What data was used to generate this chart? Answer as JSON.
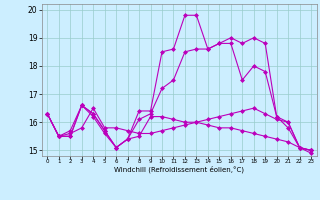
{
  "background_color": "#cceeff",
  "grid_color": "#99cccc",
  "line_color": "#bb00bb",
  "marker": "D",
  "marker_size": 2,
  "line_width": 0.8,
  "xlim": [
    -0.5,
    23.5
  ],
  "ylim": [
    14.8,
    20.2
  ],
  "yticks": [
    15,
    16,
    17,
    18,
    19,
    20
  ],
  "xticks": [
    0,
    1,
    2,
    3,
    4,
    5,
    6,
    7,
    8,
    9,
    10,
    11,
    12,
    13,
    14,
    15,
    16,
    17,
    18,
    19,
    20,
    21,
    22,
    23
  ],
  "xlabel": "Windchill (Refroidissement éolien,°C)",
  "lines": [
    [
      16.3,
      15.5,
      15.5,
      16.6,
      16.2,
      15.6,
      15.1,
      15.4,
      15.5,
      16.2,
      16.2,
      16.1,
      16.0,
      16.0,
      15.9,
      15.8,
      15.8,
      15.7,
      15.6,
      15.5,
      15.4,
      15.3,
      15.1,
      14.9
    ],
    [
      16.3,
      15.5,
      15.5,
      16.6,
      16.3,
      15.7,
      15.1,
      15.4,
      16.4,
      16.4,
      18.5,
      18.6,
      19.8,
      19.8,
      18.6,
      18.8,
      19.0,
      18.8,
      19.0,
      18.8,
      16.2,
      16.0,
      15.1,
      15.0
    ],
    [
      16.3,
      15.5,
      15.7,
      16.6,
      16.3,
      15.7,
      15.1,
      15.4,
      16.1,
      16.3,
      17.2,
      17.5,
      18.5,
      18.6,
      18.6,
      18.8,
      18.8,
      17.5,
      18.0,
      17.8,
      16.2,
      15.8,
      15.1,
      15.0
    ],
    [
      16.3,
      15.5,
      15.6,
      15.8,
      16.5,
      15.8,
      15.8,
      15.7,
      15.6,
      15.6,
      15.7,
      15.8,
      15.9,
      16.0,
      16.1,
      16.2,
      16.3,
      16.4,
      16.5,
      16.3,
      16.1,
      16.0,
      15.1,
      15.0
    ]
  ]
}
